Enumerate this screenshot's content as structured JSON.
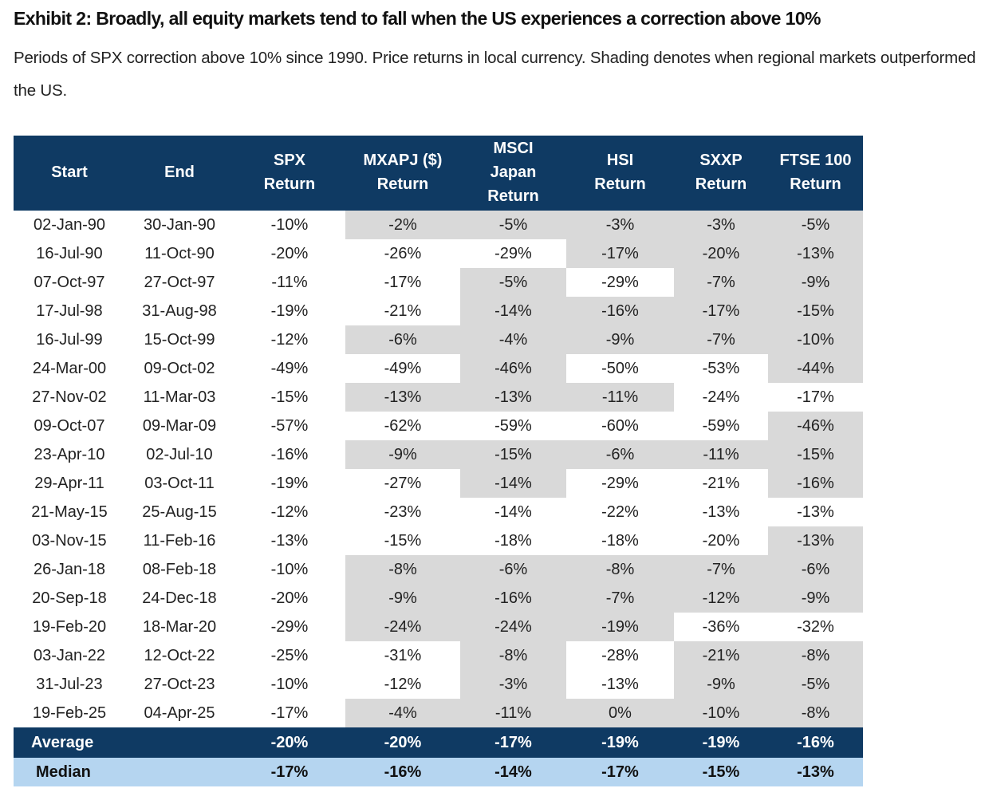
{
  "header": {
    "title": "Exhibit 2: Broadly, all equity markets tend to fall when the US experiences a correction above 10%",
    "subtitle": "Periods of SPX correction above 10% since 1990. Price returns in local currency. Shading denotes when regional markets outperformed the US."
  },
  "table": {
    "columns": [
      [
        "Start"
      ],
      [
        "End"
      ],
      [
        "SPX",
        "Return"
      ],
      [
        "MXAPJ ($)",
        "Return"
      ],
      [
        "MSCI",
        "Japan",
        "Return"
      ],
      [
        "HSI",
        "Return"
      ],
      [
        "SXXP",
        "Return"
      ],
      [
        "FTSE 100",
        "Return"
      ]
    ],
    "rows": [
      [
        "02-Jan-90",
        "30-Jan-90",
        "-10%",
        "-2%",
        "-5%",
        "-3%",
        "-3%",
        "-5%"
      ],
      [
        "16-Jul-90",
        "11-Oct-90",
        "-20%",
        "-26%",
        "-29%",
        "-17%",
        "-20%",
        "-13%"
      ],
      [
        "07-Oct-97",
        "27-Oct-97",
        "-11%",
        "-17%",
        "-5%",
        "-29%",
        "-7%",
        "-9%"
      ],
      [
        "17-Jul-98",
        "31-Aug-98",
        "-19%",
        "-21%",
        "-14%",
        "-16%",
        "-17%",
        "-15%"
      ],
      [
        "16-Jul-99",
        "15-Oct-99",
        "-12%",
        "-6%",
        "-4%",
        "-9%",
        "-7%",
        "-10%"
      ],
      [
        "24-Mar-00",
        "09-Oct-02",
        "-49%",
        "-49%",
        "-46%",
        "-50%",
        "-53%",
        "-44%"
      ],
      [
        "27-Nov-02",
        "11-Mar-03",
        "-15%",
        "-13%",
        "-13%",
        "-11%",
        "-24%",
        "-17%"
      ],
      [
        "09-Oct-07",
        "09-Mar-09",
        "-57%",
        "-62%",
        "-59%",
        "-60%",
        "-59%",
        "-46%"
      ],
      [
        "23-Apr-10",
        "02-Jul-10",
        "-16%",
        "-9%",
        "-15%",
        "-6%",
        "-11%",
        "-15%"
      ],
      [
        "29-Apr-11",
        "03-Oct-11",
        "-19%",
        "-27%",
        "-14%",
        "-29%",
        "-21%",
        "-16%"
      ],
      [
        "21-May-15",
        "25-Aug-15",
        "-12%",
        "-23%",
        "-14%",
        "-22%",
        "-13%",
        "-13%"
      ],
      [
        "03-Nov-15",
        "11-Feb-16",
        "-13%",
        "-15%",
        "-18%",
        "-18%",
        "-20%",
        "-13%"
      ],
      [
        "26-Jan-18",
        "08-Feb-18",
        "-10%",
        "-8%",
        "-6%",
        "-8%",
        "-7%",
        "-6%"
      ],
      [
        "20-Sep-18",
        "24-Dec-18",
        "-20%",
        "-9%",
        "-16%",
        "-7%",
        "-12%",
        "-9%"
      ],
      [
        "19-Feb-20",
        "18-Mar-20",
        "-29%",
        "-24%",
        "-24%",
        "-19%",
        "-36%",
        "-32%"
      ],
      [
        "03-Jan-22",
        "12-Oct-22",
        "-25%",
        "-31%",
        "-8%",
        "-28%",
        "-21%",
        "-8%"
      ],
      [
        "31-Jul-23",
        "27-Oct-23",
        "-10%",
        "-12%",
        "-3%",
        "-13%",
        "-9%",
        "-5%"
      ],
      [
        "19-Feb-25",
        "04-Apr-25",
        "-17%",
        "-4%",
        "-11%",
        "0%",
        "-10%",
        "-8%"
      ]
    ],
    "shaded": [
      [
        true,
        true,
        true,
        true,
        true
      ],
      [
        false,
        false,
        true,
        true,
        true
      ],
      [
        false,
        true,
        false,
        true,
        true
      ],
      [
        false,
        true,
        true,
        true,
        true
      ],
      [
        true,
        true,
        true,
        true,
        true
      ],
      [
        false,
        true,
        false,
        false,
        true
      ],
      [
        true,
        true,
        true,
        false,
        false
      ],
      [
        false,
        false,
        false,
        false,
        true
      ],
      [
        true,
        true,
        true,
        true,
        true
      ],
      [
        false,
        true,
        false,
        false,
        true
      ],
      [
        false,
        false,
        false,
        false,
        false
      ],
      [
        false,
        false,
        false,
        false,
        true
      ],
      [
        true,
        true,
        true,
        true,
        true
      ],
      [
        true,
        true,
        true,
        true,
        true
      ],
      [
        true,
        true,
        true,
        false,
        false
      ],
      [
        false,
        true,
        false,
        true,
        true
      ],
      [
        false,
        true,
        false,
        true,
        true
      ],
      [
        true,
        true,
        true,
        true,
        true
      ]
    ],
    "summary": [
      {
        "label": "Average",
        "values": [
          "-20%",
          "-20%",
          "-17%",
          "-19%",
          "-19%",
          "-16%"
        ]
      },
      {
        "label": "Median",
        "values": [
          "-17%",
          "-16%",
          "-14%",
          "-17%",
          "-15%",
          "-13%"
        ]
      }
    ]
  }
}
